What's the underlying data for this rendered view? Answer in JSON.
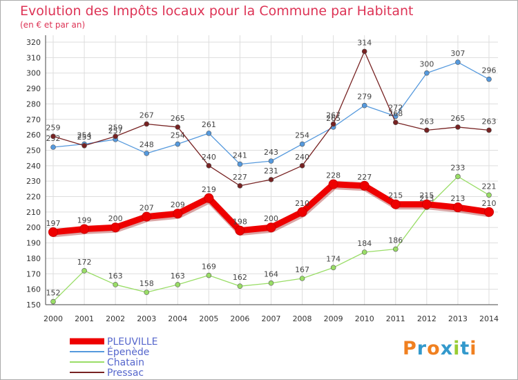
{
  "header": {
    "title": "Evolution des Impôts locaux pour la Commune par Habitant",
    "subtitle": "(en € et par an)"
  },
  "chart_data": {
    "type": "line",
    "title": "Evolution des Impôts locaux pour la Commune par Habitant",
    "subtitle": "(en € et par an)",
    "xlabel": "",
    "ylabel": "",
    "x": [
      "2000",
      "2001",
      "2002",
      "2003",
      "2004",
      "2005",
      "2006",
      "2007",
      "2008",
      "2009",
      "2010",
      "2011",
      "2012",
      "2013",
      "2014"
    ],
    "ylim": [
      150,
      320
    ],
    "yticks": [
      150,
      160,
      170,
      180,
      190,
      200,
      210,
      220,
      230,
      240,
      250,
      260,
      270,
      280,
      290,
      300,
      310,
      320
    ],
    "grid": true,
    "legend_position": "bottom-left",
    "series": [
      {
        "name": "PLEUVILLE",
        "color": "#ee0000",
        "values": [
          197,
          199,
          200,
          207,
          209,
          219,
          198,
          200,
          210,
          228,
          227,
          215,
          215,
          213,
          210
        ]
      },
      {
        "name": "Épenède",
        "color": "#5599dd",
        "values": [
          252,
          254,
          257,
          248,
          254,
          261,
          241,
          243,
          254,
          265,
          279,
          272,
          300,
          307,
          296
        ]
      },
      {
        "name": "Chatain",
        "color": "#99dd66",
        "values": [
          152,
          172,
          163,
          158,
          163,
          169,
          162,
          164,
          167,
          174,
          184,
          186,
          213,
          233,
          221
        ]
      },
      {
        "name": "Pressac",
        "color": "#772222",
        "values": [
          259,
          253,
          259,
          267,
          265,
          240,
          227,
          231,
          240,
          267,
          314,
          268,
          263,
          265,
          263
        ]
      }
    ]
  },
  "branding": {
    "logo_text": "Proxiti",
    "logo_colors": [
      "#f08020",
      "#3399cc",
      "#f08020",
      "#3399cc",
      "#99cc33",
      "#3399cc",
      "#f08020"
    ]
  }
}
